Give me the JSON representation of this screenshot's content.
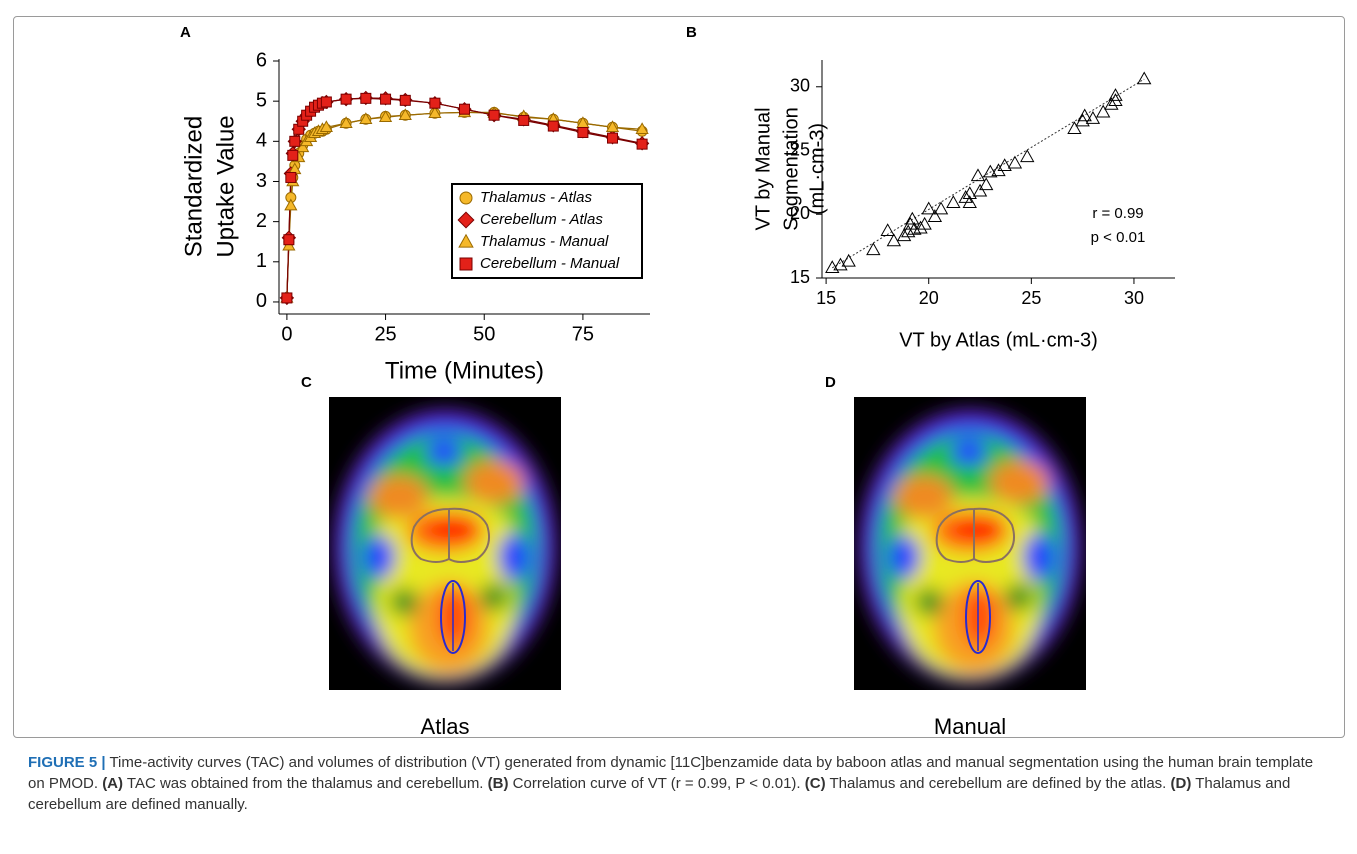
{
  "chart_data": [
    {
      "type": "line",
      "panel": "A",
      "xlabel": "Time (Minutes)",
      "ylabel": [
        "Standardized",
        "Uptake Value"
      ],
      "x": [
        0,
        0.5,
        1,
        1.5,
        2,
        3,
        4,
        5,
        6,
        7,
        8,
        9,
        10,
        15,
        20,
        25,
        30,
        37.5,
        45,
        52.5,
        60,
        67.5,
        75,
        82.5,
        90
      ],
      "xlim": [
        -2,
        92
      ],
      "xticks": [
        0,
        25,
        50,
        75
      ],
      "ylim": [
        -0.3,
        6.05
      ],
      "yticks": [
        0,
        1,
        2,
        3,
        4,
        5,
        6
      ],
      "legend": "lower-right",
      "series": [
        {
          "name": "Thalamus - Atlas",
          "marker": "circle",
          "color": "#f5b82a",
          "edge": "#9a6a00",
          "values": [
            0.1,
            1.5,
            2.6,
            3.1,
            3.4,
            3.7,
            3.9,
            4.05,
            4.15,
            4.2,
            4.25,
            4.25,
            4.3,
            4.45,
            4.55,
            4.62,
            4.65,
            4.7,
            4.72,
            4.72,
            4.6,
            4.55,
            4.45,
            4.35,
            4.25
          ]
        },
        {
          "name": "Cerebellum - Atlas",
          "marker": "diamond",
          "color": "#e32119",
          "edge": "#7a0000",
          "values": [
            0.1,
            1.6,
            3.2,
            3.7,
            4.0,
            4.3,
            4.5,
            4.65,
            4.75,
            4.85,
            4.9,
            4.95,
            4.98,
            5.05,
            5.08,
            5.07,
            5.03,
            4.95,
            4.8,
            4.65,
            4.55,
            4.4,
            4.25,
            4.1,
            3.95
          ]
        },
        {
          "name": "Thalamus - Manual",
          "marker": "triangle",
          "color": "#f5b82a",
          "edge": "#9a6a00",
          "values": [
            0.1,
            1.4,
            2.4,
            3.0,
            3.3,
            3.6,
            3.85,
            4.0,
            4.1,
            4.2,
            4.25,
            4.3,
            4.35,
            4.45,
            4.55,
            4.6,
            4.65,
            4.7,
            4.72,
            4.7,
            4.62,
            4.55,
            4.45,
            4.35,
            4.3
          ]
        },
        {
          "name": "Cerebellum - Manual",
          "marker": "square",
          "color": "#e32119",
          "edge": "#7a0000",
          "values": [
            0.1,
            1.55,
            3.1,
            3.65,
            4.0,
            4.3,
            4.5,
            4.65,
            4.75,
            4.85,
            4.9,
            4.95,
            4.98,
            5.05,
            5.07,
            5.05,
            5.02,
            4.95,
            4.8,
            4.65,
            4.52,
            4.38,
            4.22,
            4.08,
            3.93
          ]
        }
      ]
    },
    {
      "type": "scatter",
      "panel": "B",
      "xlabel": "VT by Atlas (mL·cm-3)",
      "ylabel": [
        "VT by Manual",
        "Segmentation",
        "(mL·cm-3)"
      ],
      "annotations": [
        "r = 0.99",
        "p < 0.01"
      ],
      "xlim": [
        14.8,
        32
      ],
      "xticks": [
        15,
        20,
        25,
        30
      ],
      "ylim": [
        15,
        32.1
      ],
      "yticks": [
        15,
        20,
        25,
        30
      ],
      "trendline": {
        "x": [
          15.3,
          30.5
        ],
        "y": [
          15.8,
          30.6
        ]
      },
      "series": [
        {
          "marker": "triangle",
          "color": "#000000",
          "x": [
            15.3,
            15.7,
            16.1,
            17.3,
            18.0,
            18.3,
            18.8,
            19.0,
            19.1,
            19.2,
            19.3,
            19.6,
            19.8,
            20.0,
            20.3,
            20.6,
            21.2,
            21.8,
            22.0,
            22.0,
            22.4,
            22.5,
            22.8,
            23.0,
            23.4,
            23.7,
            24.2,
            24.8,
            27.1,
            27.5,
            27.6,
            28.0,
            28.5,
            28.9,
            29.1,
            29.1,
            30.5
          ],
          "values": [
            15.8,
            16.0,
            16.3,
            17.2,
            18.7,
            17.9,
            18.3,
            18.6,
            19.2,
            19.6,
            18.8,
            18.9,
            19.2,
            20.4,
            19.8,
            20.4,
            20.9,
            21.3,
            21.6,
            20.9,
            23.0,
            21.8,
            22.3,
            23.3,
            23.4,
            23.8,
            24.0,
            24.5,
            26.7,
            27.3,
            27.7,
            27.5,
            28.0,
            28.6,
            28.9,
            29.3,
            30.6
          ]
        }
      ]
    }
  ],
  "images": [
    {
      "panel": "C",
      "label": "Atlas"
    },
    {
      "panel": "D",
      "label": "Manual"
    }
  ],
  "caption": {
    "parts": [
      {
        "text": "FIGURE 5 |",
        "style": "label"
      },
      {
        "text": " Time-activity curves (TAC) and volumes of distribution (VT) generated from dynamic [11C]benzamide data by baboon atlas and manual segmentation using the human brain template on PMOD. ",
        "style": "normal"
      },
      {
        "text": "(A)",
        "style": "bold"
      },
      {
        "text": " TAC was obtained from the thalamus and cerebellum. ",
        "style": "normal"
      },
      {
        "text": "(B)",
        "style": "bold"
      },
      {
        "text": " Correlation curve of VT (r = 0.99, P < 0.01). ",
        "style": "normal"
      },
      {
        "text": "(C)",
        "style": "bold"
      },
      {
        "text": " Thalamus and cerebellum are defined by the atlas. ",
        "style": "normal"
      },
      {
        "text": "(D)",
        "style": "bold"
      },
      {
        "text": " Thalamus and cerebellum are defined manually.",
        "style": "normal"
      }
    ]
  }
}
